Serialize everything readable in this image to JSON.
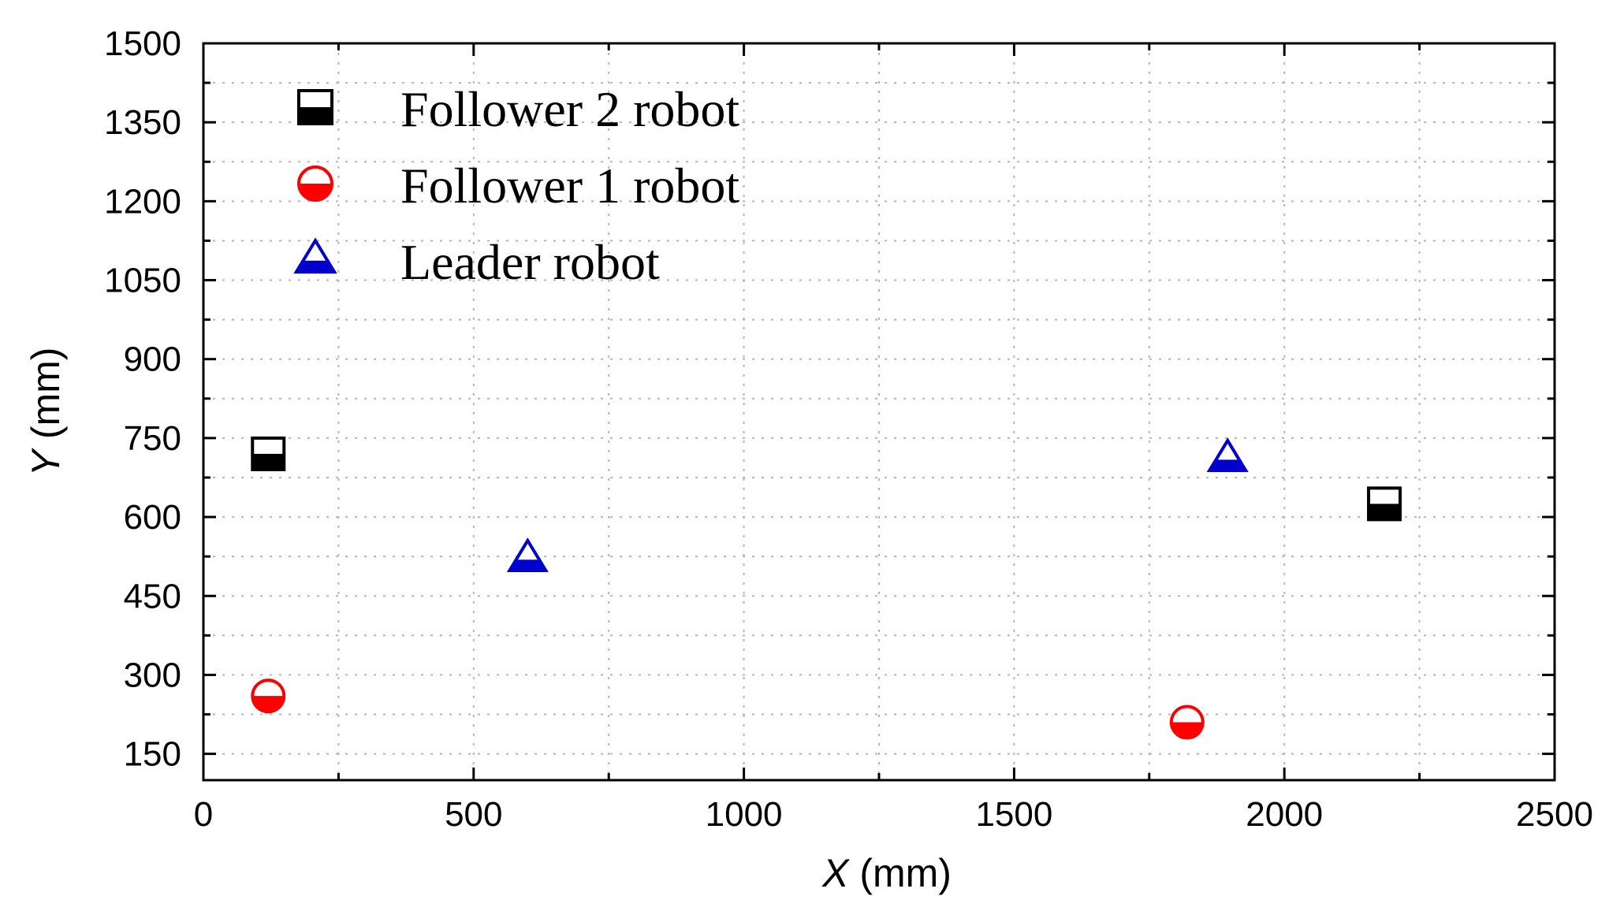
{
  "chart_data": {
    "type": "scatter",
    "title": "",
    "xlabel": {
      "var": "X",
      "unit": " (mm)"
    },
    "ylabel": {
      "var": "Y",
      "unit": " (mm)"
    },
    "xlim": [
      0,
      2500
    ],
    "ylim": [
      100,
      1500
    ],
    "x_ticks": [
      0,
      500,
      1000,
      1500,
      2000,
      2500
    ],
    "y_ticks": [
      150,
      300,
      450,
      600,
      750,
      900,
      1050,
      1200,
      1350,
      1500
    ],
    "grid": true,
    "legend_position": "top-left",
    "series": [
      {
        "name": "Follower 2 robot",
        "marker": "half-filled-square",
        "color": "#000000",
        "points": [
          {
            "x": 120,
            "y": 720
          },
          {
            "x": 2185,
            "y": 625
          }
        ]
      },
      {
        "name": "Follower 1 robot",
        "marker": "half-filled-circle",
        "color": "#ff0000",
        "points": [
          {
            "x": 120,
            "y": 260
          },
          {
            "x": 1820,
            "y": 210
          }
        ]
      },
      {
        "name": "Leader robot",
        "marker": "half-filled-triangle",
        "color": "#0000cc",
        "points": [
          {
            "x": 600,
            "y": 520
          },
          {
            "x": 1895,
            "y": 710
          }
        ]
      }
    ]
  }
}
